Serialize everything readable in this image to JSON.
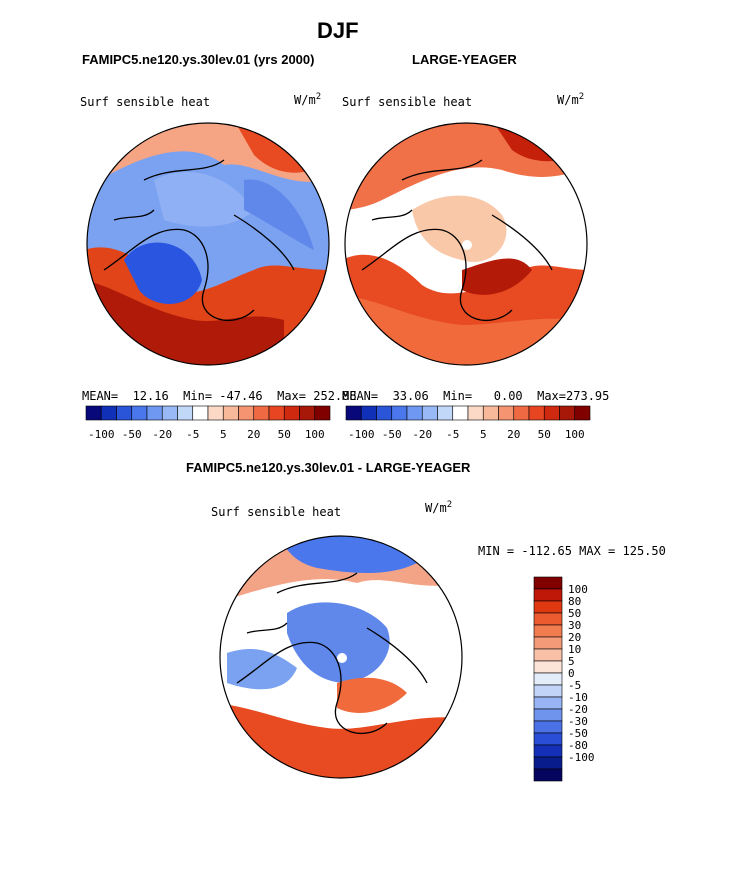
{
  "figure": {
    "title": "DJF"
  },
  "panels": {
    "left": {
      "header": "FAMIPC5.ne120.ys.30lev.01 (yrs 2000)",
      "label": "Surf sensible heat",
      "units": "W/m",
      "units_sup": "2",
      "stats": {
        "mean_label": "MEAN=",
        "mean": "12.16",
        "min_label": "Min=",
        "min": "-47.46",
        "max_label": "Max=",
        "max": "252.88"
      }
    },
    "right": {
      "header": "LARGE-YEAGER",
      "label": "Surf sensible heat",
      "units": "W/m",
      "units_sup": "2",
      "stats": {
        "mean_label": "MEAN=",
        "mean": "33.06",
        "min_label": "Min=",
        "min": "0.00",
        "max_label": "Max=",
        "max": "273.95"
      }
    },
    "diff": {
      "header": "FAMIPC5.ne120.ys.30lev.01 - LARGE-YEAGER",
      "label": "Surf sensible heat",
      "units": "W/m",
      "units_sup": "2",
      "range_text": "MIN = -112.65 MAX = 125.50"
    }
  },
  "colorbar_top": {
    "colors": [
      "#08087a",
      "#1030b8",
      "#2a55d8",
      "#4a78ec",
      "#6e98f2",
      "#98b8f6",
      "#c2d8f8",
      "#ffffff",
      "#fbd9c6",
      "#f8b89a",
      "#f49470",
      "#ef6a42",
      "#e84622",
      "#cf2a10",
      "#a81808",
      "#800000"
    ],
    "tick_labels": [
      "-100",
      "-50",
      "-20",
      "-5",
      "5",
      "20",
      "50",
      "100"
    ]
  },
  "colorbar_diff": {
    "colors": [
      "#800000",
      "#c01808",
      "#e03810",
      "#ec5a30",
      "#f17c50",
      "#f49a78",
      "#f8c0a6",
      "#fde4d8",
      "#e4ecfa",
      "#c2d4f8",
      "#98b4f4",
      "#6e94ee",
      "#4a72e6",
      "#2a4fd6",
      "#1530b8",
      "#081c8c",
      "#050560"
    ],
    "tick_labels": [
      "100",
      "80",
      "50",
      "30",
      "20",
      "10",
      "5",
      "0",
      "-5",
      "-10",
      "-20",
      "-30",
      "-50",
      "-80",
      "-100"
    ]
  }
}
